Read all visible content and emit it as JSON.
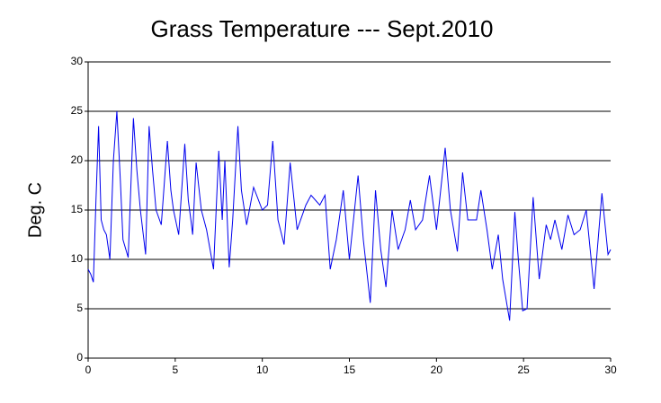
{
  "chart_data": {
    "type": "line",
    "title": "Grass Temperature --- Sept.2010",
    "ylabel": "Deg. C",
    "x": [
      0,
      0.15,
      0.3,
      0.45,
      0.6,
      0.75,
      0.9,
      1.05,
      1.25,
      1.45,
      1.65,
      1.85,
      2.0,
      2.3,
      2.6,
      2.8,
      3.0,
      3.3,
      3.5,
      3.7,
      3.9,
      4.2,
      4.55,
      4.75,
      4.9,
      5.2,
      5.55,
      5.75,
      5.9,
      6.0,
      6.2,
      6.5,
      6.8,
      7.2,
      7.5,
      7.7,
      7.85,
      8.1,
      8.3,
      8.6,
      8.8,
      9.1,
      9.5,
      10,
      10.3,
      10.6,
      10.9,
      11.25,
      11.6,
      12,
      12.5,
      12.8,
      13.3,
      13.6,
      13.9,
      14.25,
      14.65,
      15,
      15.5,
      15.8,
      16.2,
      16.5,
      16.8,
      17.1,
      17.45,
      17.8,
      18.2,
      18.5,
      18.8,
      19.2,
      19.6,
      20,
      20.5,
      20.8,
      21.2,
      21.5,
      21.8,
      22.3,
      22.55,
      22.9,
      23.2,
      23.55,
      23.8,
      24.2,
      24.5,
      24.7,
      24.95,
      25.2,
      25.55,
      25.9,
      26.3,
      26.55,
      26.8,
      27.2,
      27.55,
      27.9,
      28.25,
      28.6,
      29.05,
      29.5,
      29.85,
      30
    ],
    "series": [
      {
        "name": "Grass Temperature",
        "color": "#0000ee",
        "values": [
          9,
          8.5,
          7.7,
          16,
          23.5,
          14,
          13,
          12.5,
          10,
          20,
          25,
          18,
          12,
          10.2,
          24.3,
          19,
          15,
          10.5,
          23.5,
          19,
          15,
          13.5,
          22,
          17,
          15,
          12.5,
          21.7,
          16,
          14,
          12.5,
          19.8,
          15,
          13,
          9,
          21,
          14,
          20,
          9.2,
          14,
          23.5,
          17,
          13.5,
          17.3,
          15,
          15.5,
          22,
          14,
          11.5,
          19.8,
          13,
          15.5,
          16.5,
          15.5,
          16.5,
          9,
          12,
          17,
          10,
          18.5,
          12,
          5.6,
          17,
          11,
          7.2,
          15,
          11,
          13,
          16,
          13,
          14,
          18.5,
          13,
          21.3,
          15,
          10.8,
          18.8,
          14,
          14,
          17,
          13,
          9,
          12.5,
          8,
          3.8,
          14.8,
          10,
          4.8,
          5,
          16.3,
          8,
          13.5,
          12,
          14,
          11,
          14.5,
          12.5,
          13,
          15,
          7,
          16.7,
          10.5,
          11
        ]
      }
    ],
    "xlim": [
      0,
      30
    ],
    "xticks": [
      0,
      5,
      10,
      15,
      20,
      25,
      30
    ],
    "ylim": [
      0,
      30
    ],
    "yticks": [
      0,
      5,
      10,
      15,
      20,
      25,
      30
    ],
    "grid": true
  }
}
